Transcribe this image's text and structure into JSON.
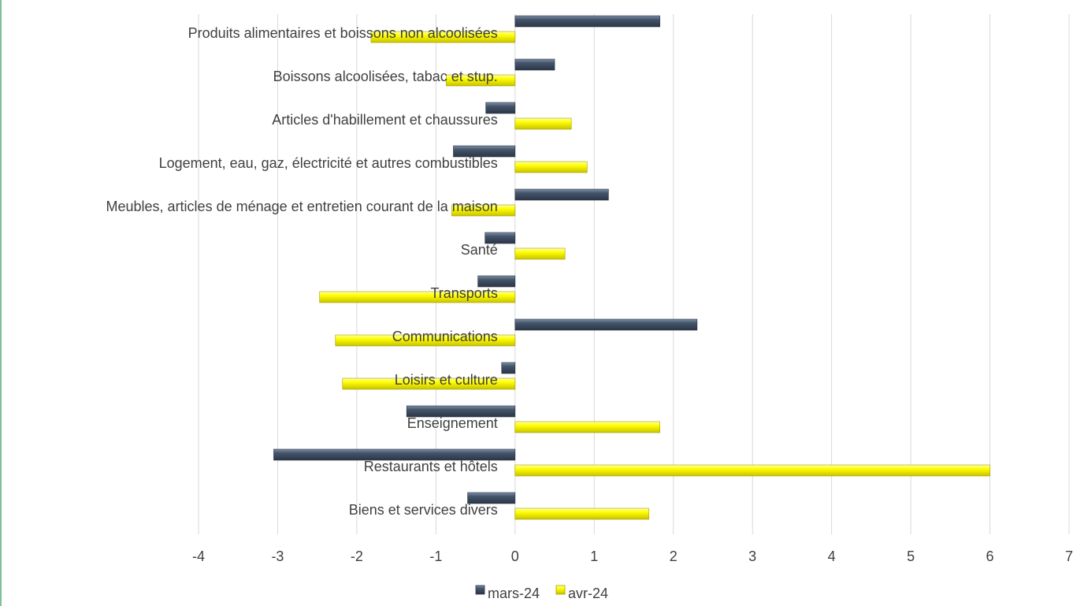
{
  "chart_data": {
    "type": "bar",
    "orientation": "horizontal",
    "categories": [
      "Produits alimentaires et boissons non alcoolisées",
      "Boissons alcoolisées, tabac et stup.",
      "Articles d'habillement et chaussures",
      "Logement, eau, gaz, électricité et autres combustibles",
      "Meubles, articles de ménage et entretien courant de la maison",
      "Santé",
      "Transports",
      "Communications",
      "Loisirs et culture",
      "Enseignement",
      "Restaurants et hôtels",
      "Biens et services divers"
    ],
    "series": [
      {
        "name": "mars-24",
        "color": "#44546a",
        "values": [
          1.83,
          0.5,
          -0.37,
          -0.78,
          1.18,
          -0.38,
          -0.47,
          2.3,
          -0.17,
          -1.37,
          -3.05,
          -0.6
        ]
      },
      {
        "name": "avr-24",
        "color": "#ffff00",
        "values": [
          -1.82,
          -0.87,
          0.71,
          0.91,
          -0.8,
          0.63,
          -2.47,
          -2.27,
          -2.18,
          1.83,
          6.0,
          1.69
        ]
      }
    ],
    "xlim": [
      -4,
      7
    ],
    "xticks": [
      "-4",
      "-3",
      "-2",
      "-1",
      "0",
      "1",
      "2",
      "3",
      "4",
      "5",
      "6",
      "7"
    ],
    "grid": true,
    "legend_position": "bottom"
  }
}
